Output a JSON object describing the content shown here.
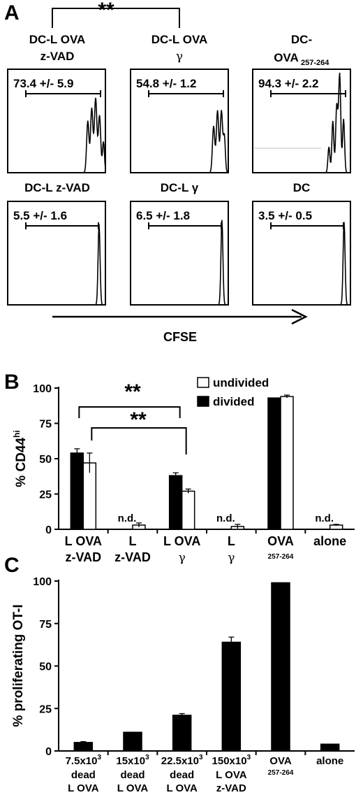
{
  "panel_a": {
    "letter": "A",
    "significance": "**",
    "axis_label": "CFSE",
    "plots": [
      {
        "title_line1": "DC-L OVA",
        "title_line2": "z-VAD",
        "stat": "73.4 +/- 5.9"
      },
      {
        "title_line1": "DC-L OVA",
        "title_line2": "γ",
        "stat": "54.8 +/- 1.2"
      },
      {
        "title_line1": "DC-",
        "title_line2": "OVA",
        "title_sub": "257-264",
        "stat": "94.3 +/- 2.2"
      },
      {
        "title_line1": "DC-L z-VAD",
        "title_line2": "",
        "stat": "5.5 +/- 1.6"
      },
      {
        "title_line1": "DC-L γ",
        "title_line2": "",
        "stat": "6.5 +/- 1.8"
      },
      {
        "title_line1": "DC",
        "title_line2": "",
        "stat": "3.5 +/- 0.5"
      }
    ]
  },
  "chart_data": [
    {
      "type": "bar",
      "panel": "B",
      "ylabel": "% CD44",
      "ylabel_sup": "hi",
      "ylim": [
        0,
        100
      ],
      "yticks": [
        0,
        25,
        50,
        75,
        100
      ],
      "categories": [
        {
          "line1": "L OVA",
          "line2": "z-VAD"
        },
        {
          "line1": "L",
          "line2": "z-VAD"
        },
        {
          "line1": "L OVA",
          "line2": "γ"
        },
        {
          "line1": "L",
          "line2": "γ"
        },
        {
          "line1": "OVA",
          "line2": "257-264"
        },
        {
          "line1": "alone",
          "line2": ""
        }
      ],
      "series": [
        {
          "name": "divided",
          "color": "#000000",
          "values": [
            54,
            null,
            38,
            null,
            93,
            null
          ],
          "errors": [
            3,
            null,
            2,
            null,
            0,
            null
          ]
        },
        {
          "name": "undivided",
          "color": "#ffffff",
          "values": [
            47,
            3,
            27,
            2,
            94,
            3
          ],
          "errors": [
            7,
            1.5,
            1.5,
            1.5,
            1,
            0.5
          ]
        }
      ],
      "nd_label": "n.d.",
      "nd_categories": [
        1,
        3,
        5
      ],
      "significance": [
        {
          "from": 0,
          "to": 2,
          "label": "**"
        },
        {
          "from": 0,
          "to": 2,
          "label": "**"
        }
      ],
      "legend_position": "top-right"
    },
    {
      "type": "bar",
      "panel": "C",
      "ylabel": "% proliferating OT-I",
      "ylim": [
        0,
        100
      ],
      "yticks": [
        0,
        25,
        50,
        75,
        100
      ],
      "categories": [
        {
          "line1": "7.5x10",
          "sup": "3",
          "line2": "dead",
          "line3": "L OVA"
        },
        {
          "line1": "15x10",
          "sup": "3",
          "line2": "dead",
          "line3": "L OVA"
        },
        {
          "line1": "22.5x10",
          "sup": "3",
          "line2": "dead",
          "line3": "L OVA"
        },
        {
          "line1": "150x10",
          "sup": "3",
          "line2": "L OVA",
          "line3": "z-VAD"
        },
        {
          "line1": "OVA",
          "sup": "",
          "line2": "257-264",
          "line3": ""
        },
        {
          "line1": "alone",
          "sup": "",
          "line2": "",
          "line3": ""
        }
      ],
      "series": [
        {
          "name": "",
          "color": "#000000",
          "values": [
            5,
            11,
            21,
            64,
            99,
            4
          ],
          "errors": [
            0.5,
            0,
            1,
            3,
            0,
            0
          ]
        }
      ]
    }
  ],
  "legend": {
    "undivided": "undivided",
    "divided": "divided"
  },
  "panel_b_letter": "B",
  "panel_c_letter": "C"
}
